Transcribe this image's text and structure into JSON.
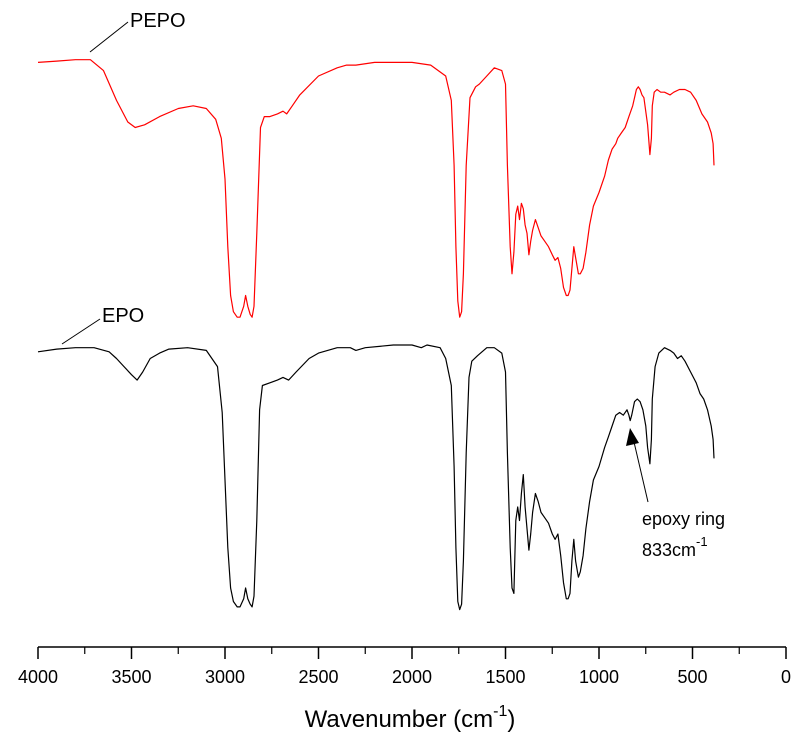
{
  "chart_data": {
    "type": "line",
    "xlabel_main": "Wavenumber (cm",
    "xlabel_sup": "-1",
    "xlabel_tail": ")",
    "xlim": [
      4000,
      0
    ],
    "xticks_major": [
      4000,
      3500,
      3000,
      2500,
      2000,
      1500,
      1000,
      500,
      0
    ],
    "xtick_labels": [
      "4000",
      "3500",
      "3000",
      "2500",
      "2000",
      "1500",
      "1000",
      "500",
      "0"
    ],
    "xticks_minor": [
      3750,
      3250,
      2750,
      2250,
      1750,
      1250,
      750,
      250
    ],
    "y_axis_shown": false,
    "colors": {
      "PEPO": "#ff0000",
      "EPO": "#000000",
      "axis": "#000000"
    },
    "series": [
      {
        "name": "PEPO",
        "color": "#ff0000",
        "points": [
          [
            4000,
            0.98
          ],
          [
            3900,
            0.985
          ],
          [
            3800,
            0.99
          ],
          [
            3720,
            0.99
          ],
          [
            3650,
            0.95
          ],
          [
            3580,
            0.84
          ],
          [
            3520,
            0.76
          ],
          [
            3480,
            0.74
          ],
          [
            3430,
            0.75
          ],
          [
            3350,
            0.78
          ],
          [
            3250,
            0.81
          ],
          [
            3170,
            0.82
          ],
          [
            3100,
            0.81
          ],
          [
            3050,
            0.77
          ],
          [
            3020,
            0.7
          ],
          [
            3000,
            0.55
          ],
          [
            2985,
            0.3
          ],
          [
            2970,
            0.12
          ],
          [
            2955,
            0.06
          ],
          [
            2935,
            0.04
          ],
          [
            2920,
            0.04
          ],
          [
            2900,
            0.08
          ],
          [
            2890,
            0.12
          ],
          [
            2878,
            0.08
          ],
          [
            2865,
            0.05
          ],
          [
            2855,
            0.04
          ],
          [
            2845,
            0.08
          ],
          [
            2830,
            0.35
          ],
          [
            2810,
            0.74
          ],
          [
            2790,
            0.78
          ],
          [
            2760,
            0.78
          ],
          [
            2720,
            0.79
          ],
          [
            2690,
            0.8
          ],
          [
            2670,
            0.79
          ],
          [
            2640,
            0.82
          ],
          [
            2600,
            0.86
          ],
          [
            2500,
            0.93
          ],
          [
            2400,
            0.96
          ],
          [
            2350,
            0.97
          ],
          [
            2300,
            0.97
          ],
          [
            2200,
            0.98
          ],
          [
            2100,
            0.98
          ],
          [
            2000,
            0.98
          ],
          [
            1900,
            0.97
          ],
          [
            1820,
            0.93
          ],
          [
            1790,
            0.84
          ],
          [
            1775,
            0.6
          ],
          [
            1765,
            0.3
          ],
          [
            1755,
            0.1
          ],
          [
            1745,
            0.04
          ],
          [
            1735,
            0.06
          ],
          [
            1725,
            0.2
          ],
          [
            1710,
            0.6
          ],
          [
            1690,
            0.85
          ],
          [
            1660,
            0.89
          ],
          [
            1640,
            0.9
          ],
          [
            1600,
            0.93
          ],
          [
            1560,
            0.96
          ],
          [
            1520,
            0.95
          ],
          [
            1500,
            0.9
          ],
          [
            1490,
            0.6
          ],
          [
            1475,
            0.3
          ],
          [
            1465,
            0.2
          ],
          [
            1455,
            0.28
          ],
          [
            1445,
            0.42
          ],
          [
            1435,
            0.45
          ],
          [
            1425,
            0.4
          ],
          [
            1415,
            0.46
          ],
          [
            1405,
            0.44
          ],
          [
            1395,
            0.38
          ],
          [
            1385,
            0.35
          ],
          [
            1375,
            0.27
          ],
          [
            1365,
            0.32
          ],
          [
            1355,
            0.36
          ],
          [
            1340,
            0.4
          ],
          [
            1325,
            0.37
          ],
          [
            1310,
            0.34
          ],
          [
            1290,
            0.32
          ],
          [
            1270,
            0.3
          ],
          [
            1250,
            0.27
          ],
          [
            1235,
            0.25
          ],
          [
            1220,
            0.26
          ],
          [
            1205,
            0.22
          ],
          [
            1190,
            0.15
          ],
          [
            1175,
            0.12
          ],
          [
            1165,
            0.12
          ],
          [
            1155,
            0.14
          ],
          [
            1145,
            0.22
          ],
          [
            1135,
            0.3
          ],
          [
            1125,
            0.26
          ],
          [
            1110,
            0.2
          ],
          [
            1100,
            0.2
          ],
          [
            1085,
            0.22
          ],
          [
            1070,
            0.28
          ],
          [
            1050,
            0.38
          ],
          [
            1030,
            0.45
          ],
          [
            1000,
            0.5
          ],
          [
            970,
            0.56
          ],
          [
            950,
            0.62
          ],
          [
            930,
            0.66
          ],
          [
            910,
            0.68
          ],
          [
            900,
            0.7
          ],
          [
            880,
            0.72
          ],
          [
            860,
            0.74
          ],
          [
            840,
            0.78
          ],
          [
            820,
            0.82
          ],
          [
            800,
            0.88
          ],
          [
            790,
            0.89
          ],
          [
            780,
            0.88
          ],
          [
            770,
            0.86
          ],
          [
            760,
            0.85
          ],
          [
            740,
            0.75
          ],
          [
            728,
            0.64
          ],
          [
            720,
            0.7
          ],
          [
            715,
            0.82
          ],
          [
            705,
            0.87
          ],
          [
            690,
            0.88
          ],
          [
            670,
            0.87
          ],
          [
            650,
            0.87
          ],
          [
            620,
            0.86
          ],
          [
            600,
            0.87
          ],
          [
            570,
            0.88
          ],
          [
            540,
            0.88
          ],
          [
            510,
            0.87
          ],
          [
            480,
            0.84
          ],
          [
            450,
            0.79
          ],
          [
            420,
            0.76
          ],
          [
            400,
            0.72
          ],
          [
            390,
            0.68
          ],
          [
            385,
            0.6
          ]
        ]
      },
      {
        "name": "EPO",
        "color": "#000000",
        "points": [
          [
            4000,
            0.975
          ],
          [
            3900,
            0.985
          ],
          [
            3800,
            0.99
          ],
          [
            3700,
            0.99
          ],
          [
            3620,
            0.975
          ],
          [
            3580,
            0.95
          ],
          [
            3540,
            0.92
          ],
          [
            3500,
            0.89
          ],
          [
            3470,
            0.87
          ],
          [
            3440,
            0.9
          ],
          [
            3400,
            0.95
          ],
          [
            3350,
            0.97
          ],
          [
            3300,
            0.985
          ],
          [
            3200,
            0.99
          ],
          [
            3100,
            0.98
          ],
          [
            3040,
            0.92
          ],
          [
            3015,
            0.75
          ],
          [
            3000,
            0.5
          ],
          [
            2985,
            0.25
          ],
          [
            2970,
            0.1
          ],
          [
            2955,
            0.05
          ],
          [
            2935,
            0.03
          ],
          [
            2920,
            0.03
          ],
          [
            2900,
            0.06
          ],
          [
            2890,
            0.1
          ],
          [
            2878,
            0.06
          ],
          [
            2865,
            0.04
          ],
          [
            2855,
            0.03
          ],
          [
            2845,
            0.07
          ],
          [
            2830,
            0.35
          ],
          [
            2815,
            0.76
          ],
          [
            2800,
            0.85
          ],
          [
            2760,
            0.86
          ],
          [
            2720,
            0.87
          ],
          [
            2690,
            0.88
          ],
          [
            2660,
            0.87
          ],
          [
            2620,
            0.9
          ],
          [
            2550,
            0.95
          ],
          [
            2500,
            0.97
          ],
          [
            2400,
            0.99
          ],
          [
            2330,
            0.99
          ],
          [
            2300,
            0.98
          ],
          [
            2250,
            0.99
          ],
          [
            2100,
            1.0
          ],
          [
            2000,
            1.0
          ],
          [
            1950,
            0.99
          ],
          [
            1920,
            1.0
          ],
          [
            1850,
            0.99
          ],
          [
            1820,
            0.95
          ],
          [
            1790,
            0.85
          ],
          [
            1775,
            0.55
          ],
          [
            1765,
            0.25
          ],
          [
            1755,
            0.05
          ],
          [
            1745,
            0.02
          ],
          [
            1735,
            0.04
          ],
          [
            1725,
            0.2
          ],
          [
            1710,
            0.6
          ],
          [
            1695,
            0.88
          ],
          [
            1680,
            0.94
          ],
          [
            1650,
            0.96
          ],
          [
            1600,
            0.99
          ],
          [
            1560,
            0.99
          ],
          [
            1520,
            0.97
          ],
          [
            1500,
            0.9
          ],
          [
            1490,
            0.6
          ],
          [
            1475,
            0.25
          ],
          [
            1465,
            0.1
          ],
          [
            1455,
            0.08
          ],
          [
            1445,
            0.35
          ],
          [
            1435,
            0.4
          ],
          [
            1425,
            0.35
          ],
          [
            1415,
            0.45
          ],
          [
            1405,
            0.52
          ],
          [
            1395,
            0.4
          ],
          [
            1385,
            0.32
          ],
          [
            1375,
            0.24
          ],
          [
            1365,
            0.3
          ],
          [
            1355,
            0.38
          ],
          [
            1340,
            0.45
          ],
          [
            1325,
            0.42
          ],
          [
            1310,
            0.38
          ],
          [
            1290,
            0.36
          ],
          [
            1270,
            0.34
          ],
          [
            1250,
            0.3
          ],
          [
            1235,
            0.28
          ],
          [
            1220,
            0.3
          ],
          [
            1205,
            0.22
          ],
          [
            1190,
            0.12
          ],
          [
            1175,
            0.06
          ],
          [
            1165,
            0.06
          ],
          [
            1155,
            0.08
          ],
          [
            1145,
            0.2
          ],
          [
            1135,
            0.28
          ],
          [
            1125,
            0.2
          ],
          [
            1110,
            0.14
          ],
          [
            1100,
            0.16
          ],
          [
            1085,
            0.22
          ],
          [
            1070,
            0.32
          ],
          [
            1050,
            0.42
          ],
          [
            1030,
            0.5
          ],
          [
            1000,
            0.55
          ],
          [
            970,
            0.62
          ],
          [
            950,
            0.66
          ],
          [
            930,
            0.7
          ],
          [
            910,
            0.74
          ],
          [
            890,
            0.75
          ],
          [
            870,
            0.74
          ],
          [
            850,
            0.76
          ],
          [
            840,
            0.74
          ],
          [
            833,
            0.72
          ],
          [
            825,
            0.74
          ],
          [
            810,
            0.79
          ],
          [
            795,
            0.8
          ],
          [
            780,
            0.79
          ],
          [
            765,
            0.76
          ],
          [
            750,
            0.7
          ],
          [
            740,
            0.62
          ],
          [
            728,
            0.56
          ],
          [
            720,
            0.65
          ],
          [
            715,
            0.8
          ],
          [
            700,
            0.92
          ],
          [
            680,
            0.97
          ],
          [
            650,
            0.99
          ],
          [
            620,
            0.98
          ],
          [
            600,
            0.97
          ],
          [
            580,
            0.95
          ],
          [
            560,
            0.96
          ],
          [
            540,
            0.94
          ],
          [
            510,
            0.9
          ],
          [
            480,
            0.86
          ],
          [
            460,
            0.82
          ],
          [
            440,
            0.8
          ],
          [
            420,
            0.76
          ],
          [
            400,
            0.7
          ],
          [
            390,
            0.65
          ],
          [
            385,
            0.58
          ]
        ]
      }
    ],
    "labels": {
      "PEPO": "PEPO",
      "EPO": "EPO"
    },
    "annotation": {
      "line1": "epoxy ring",
      "line2_main": "833cm",
      "line2_sup": "-1",
      "x": 833
    }
  }
}
